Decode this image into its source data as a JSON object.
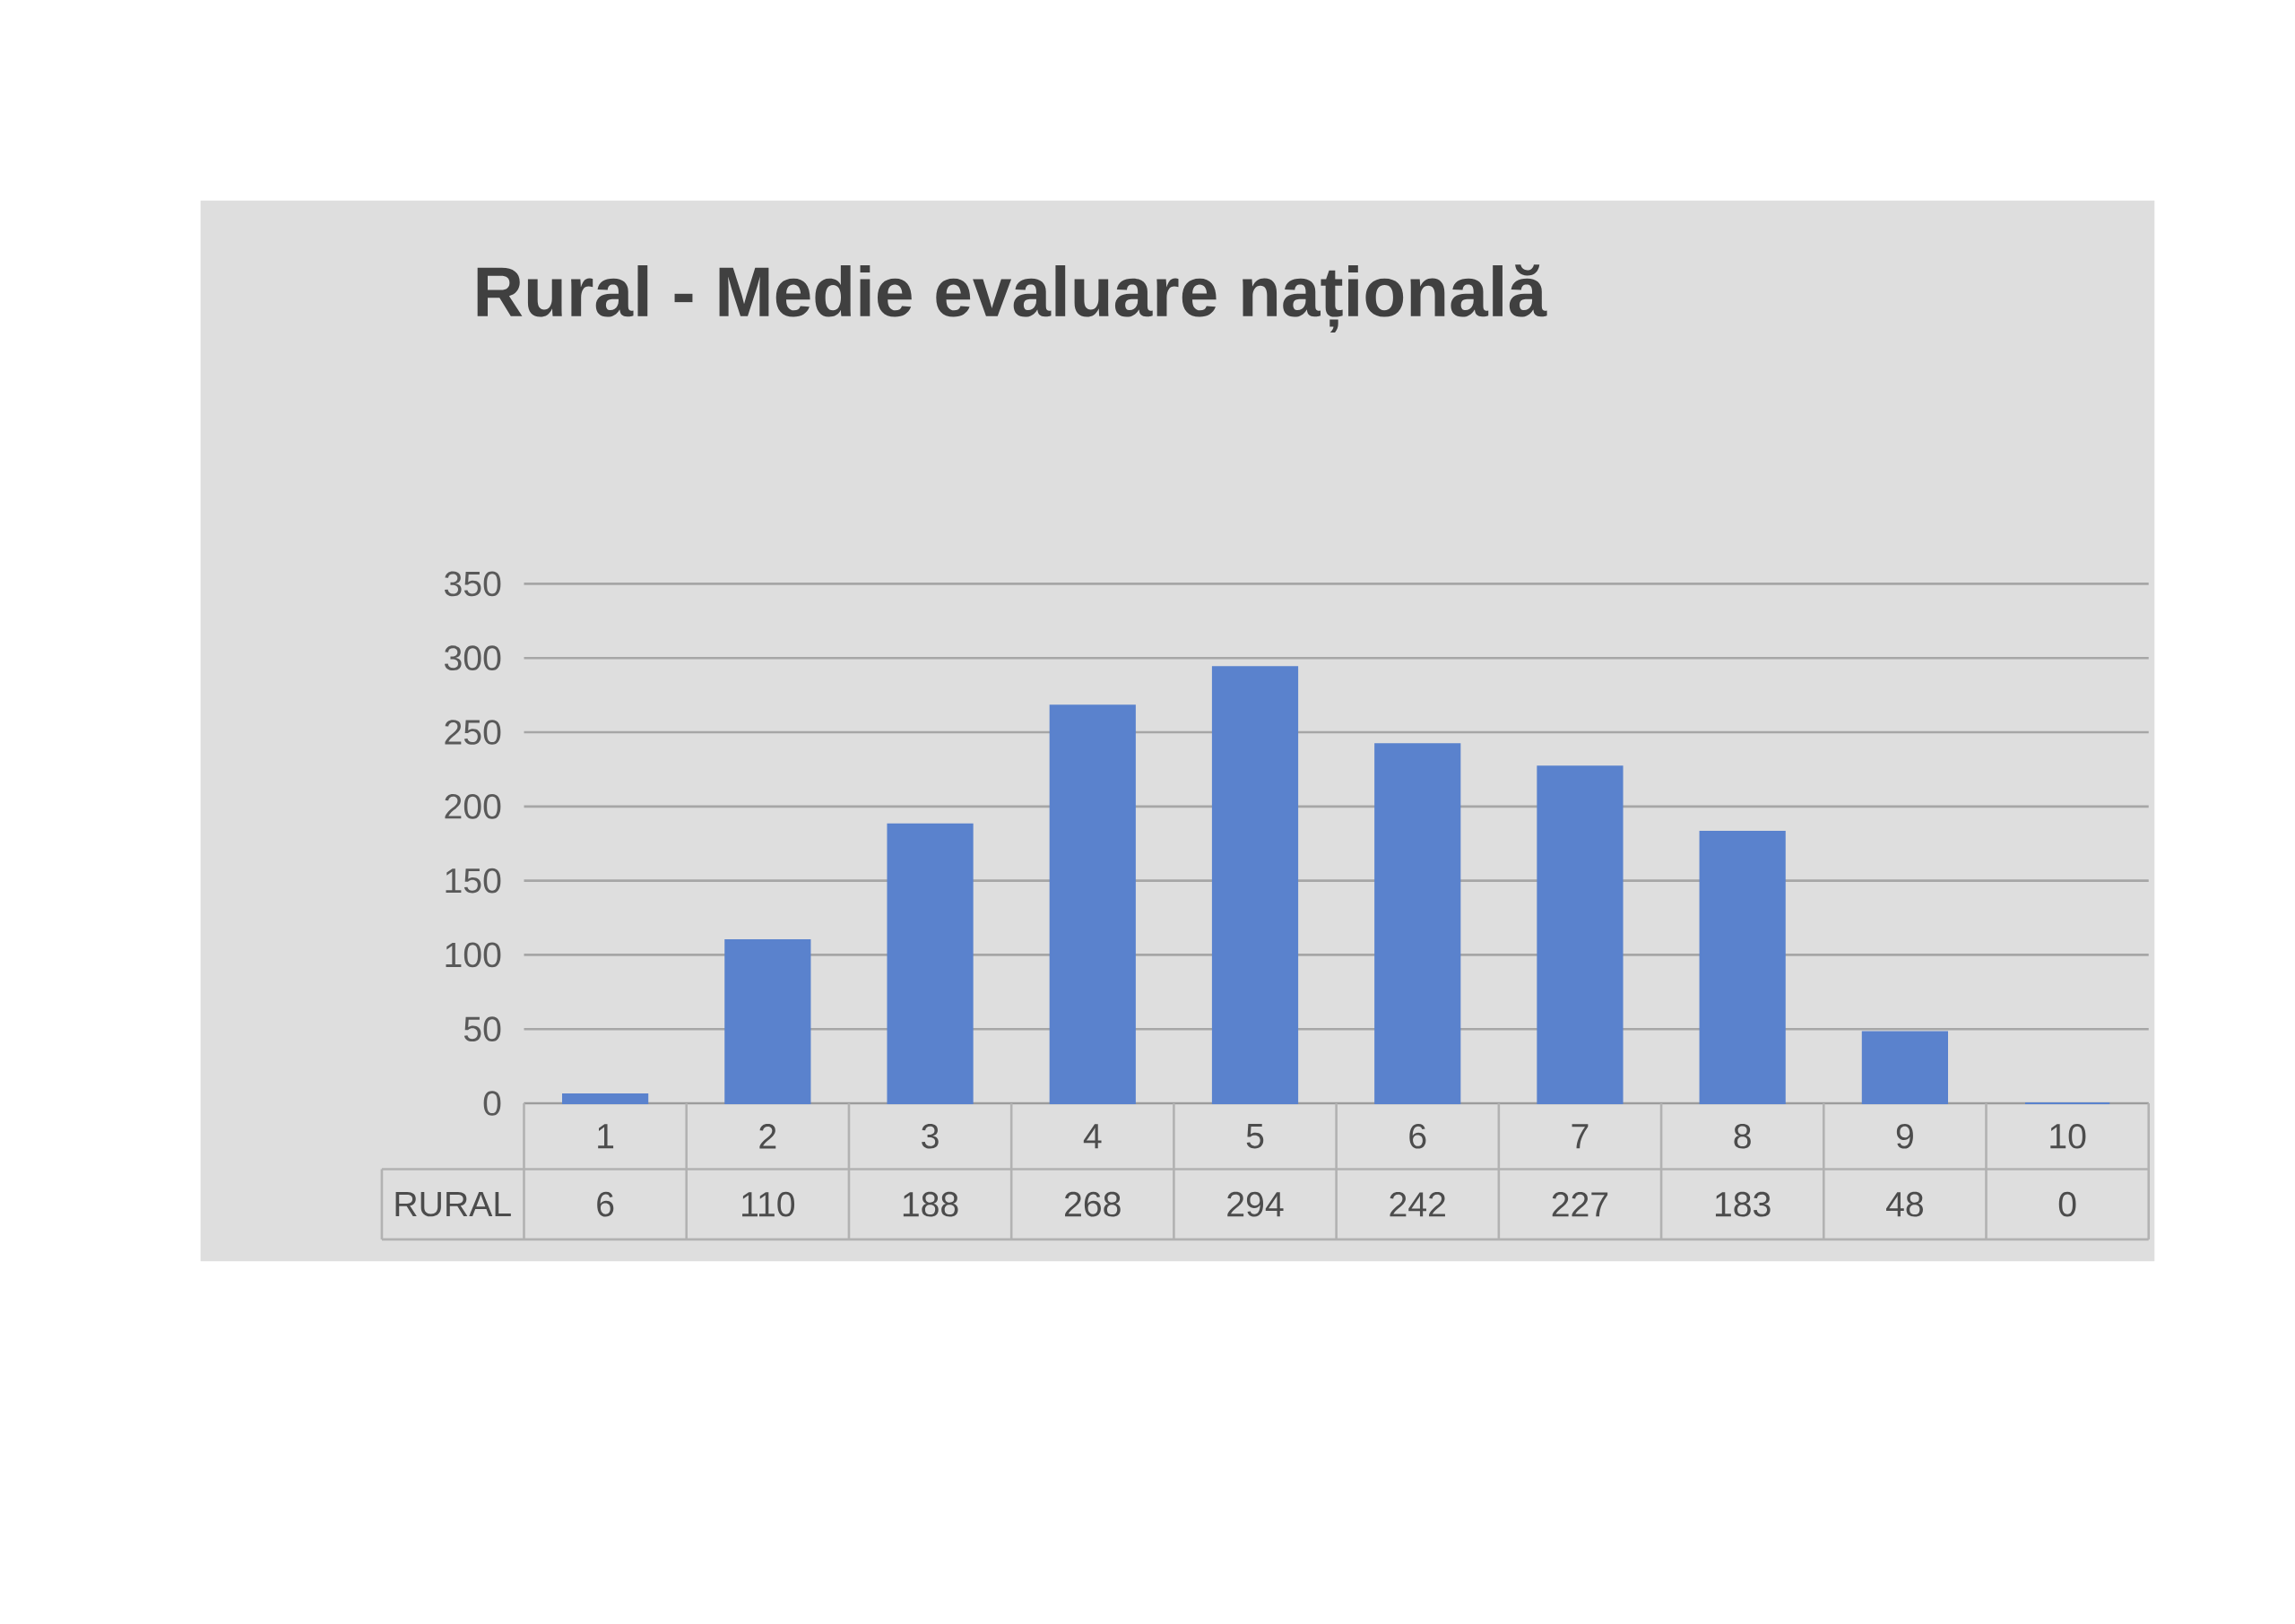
{
  "chart_data": {
    "type": "bar",
    "title": "Rural - Medie evaluare națională",
    "categories": [
      "1",
      "2",
      "3",
      "4",
      "5",
      "6",
      "7",
      "8",
      "9",
      "10"
    ],
    "series": [
      {
        "name": "RURAL",
        "color": "#5a82cd",
        "values": [
          6,
          110,
          188,
          268,
          294,
          242,
          227,
          183,
          48,
          0
        ]
      }
    ],
    "ylim": [
      0,
      350
    ],
    "yticks": [
      0,
      50,
      100,
      150,
      200,
      250,
      300,
      350
    ],
    "grid": "y",
    "data_labels": true
  }
}
